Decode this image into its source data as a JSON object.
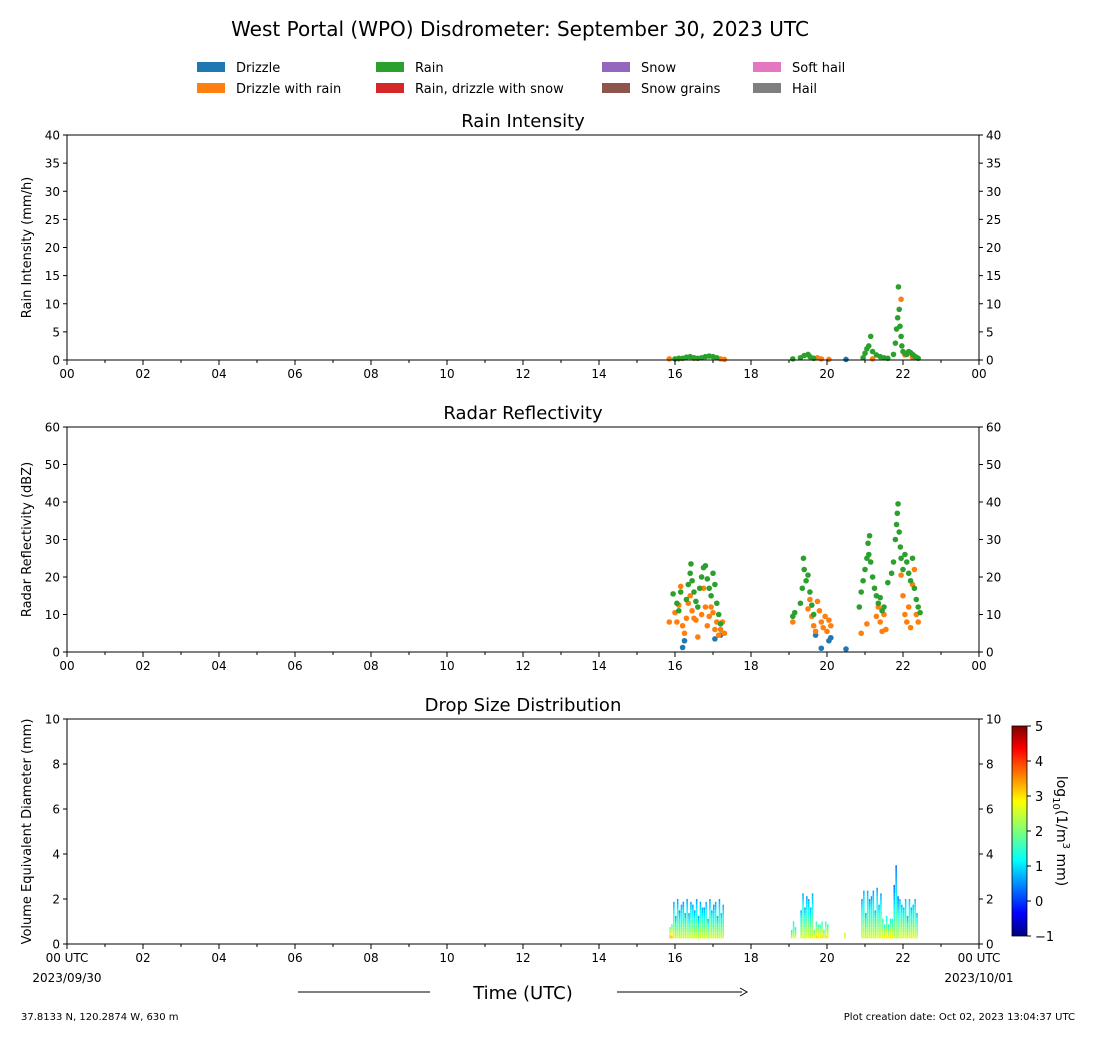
{
  "figure": {
    "title": "West Portal (WPO) Disdrometer: September 30, 2023 UTC",
    "footer_left": "37.8133 N, 120.2874 W, 630 m",
    "footer_right": "Plot creation date: Oct 02, 2023 13:04:37 UTC",
    "time_label": "Time (UTC)"
  },
  "legend": {
    "entries": [
      {
        "label": "Drizzle",
        "color": "#1f77b4"
      },
      {
        "label": "Drizzle with rain",
        "color": "#ff7f0e"
      },
      {
        "label": "Rain",
        "color": "#2ca02c"
      },
      {
        "label": "Rain, drizzle with snow",
        "color": "#d62728"
      },
      {
        "label": "Snow",
        "color": "#9467bd"
      },
      {
        "label": "Snow grains",
        "color": "#8c564b"
      },
      {
        "label": "Soft hail",
        "color": "#e377c2"
      },
      {
        "label": "Hail",
        "color": "#7f7f7f"
      }
    ]
  },
  "colorbar": {
    "label_prefix": "log",
    "label_sub": "10",
    "label_mid": "(1/m",
    "label_sup": "3",
    "label_suffix": " mm)",
    "range": [
      -1,
      5
    ],
    "ticks": [
      "−1",
      "0",
      "1",
      "2",
      "3",
      "4",
      "5"
    ]
  },
  "chart_data": [
    {
      "type": "scatter",
      "title": "Rain Intensity",
      "ylabel": "Rain Intensity (mm/h)",
      "xlim": [
        0,
        24
      ],
      "ylim": [
        0,
        40
      ],
      "yticks": [
        0,
        5,
        10,
        15,
        20,
        25,
        30,
        35,
        40
      ],
      "xticks": [
        "00",
        "02",
        "04",
        "06",
        "08",
        "10",
        "12",
        "14",
        "16",
        "18",
        "20",
        "22",
        "00"
      ],
      "series": [
        {
          "name": "Drizzle",
          "color": "#1f77b4",
          "points": [
            [
              20.5,
              0.1
            ]
          ]
        },
        {
          "name": "Drizzle with rain",
          "color": "#ff7f0e",
          "points": [
            [
              15.85,
              0.2
            ],
            [
              16.1,
              0.2
            ],
            [
              16.5,
              0.3
            ],
            [
              17.2,
              0.2
            ],
            [
              17.3,
              0.1
            ],
            [
              19.75,
              0.4
            ],
            [
              19.85,
              0.2
            ],
            [
              20.05,
              0.1
            ],
            [
              21.2,
              0.2
            ],
            [
              21.95,
              10.8
            ],
            [
              22.05,
              0.9
            ],
            [
              22.25,
              0.5
            ]
          ]
        },
        {
          "name": "Rain",
          "color": "#2ca02c",
          "points": [
            [
              16.0,
              0.2
            ],
            [
              16.1,
              0.3
            ],
            [
              16.2,
              0.3
            ],
            [
              16.3,
              0.5
            ],
            [
              16.4,
              0.6
            ],
            [
              16.5,
              0.4
            ],
            [
              16.6,
              0.3
            ],
            [
              16.7,
              0.4
            ],
            [
              16.8,
              0.6
            ],
            [
              16.9,
              0.7
            ],
            [
              17.0,
              0.6
            ],
            [
              17.1,
              0.4
            ],
            [
              19.1,
              0.2
            ],
            [
              19.3,
              0.4
            ],
            [
              19.4,
              0.8
            ],
            [
              19.5,
              1.0
            ],
            [
              19.55,
              0.6
            ],
            [
              19.65,
              0.3
            ],
            [
              20.95,
              0.4
            ],
            [
              21.0,
              1.2
            ],
            [
              21.05,
              2.0
            ],
            [
              21.1,
              2.5
            ],
            [
              21.15,
              4.2
            ],
            [
              21.2,
              1.5
            ],
            [
              21.3,
              0.9
            ],
            [
              21.4,
              0.6
            ],
            [
              21.5,
              0.4
            ],
            [
              21.6,
              0.3
            ],
            [
              21.75,
              1.0
            ],
            [
              21.8,
              3.0
            ],
            [
              21.83,
              5.5
            ],
            [
              21.86,
              7.5
            ],
            [
              21.88,
              13.0
            ],
            [
              21.9,
              9.0
            ],
            [
              21.92,
              6.0
            ],
            [
              21.95,
              4.2
            ],
            [
              21.97,
              2.5
            ],
            [
              22.0,
              1.5
            ],
            [
              22.05,
              1.2
            ],
            [
              22.1,
              1.0
            ],
            [
              22.15,
              1.5
            ],
            [
              22.2,
              1.3
            ],
            [
              22.25,
              1.0
            ],
            [
              22.3,
              0.7
            ],
            [
              22.35,
              0.5
            ],
            [
              22.4,
              0.3
            ]
          ]
        }
      ]
    },
    {
      "type": "scatter",
      "title": "Radar Reflectivity",
      "ylabel": "Radar Reflectivity (dBZ)",
      "xlim": [
        0,
        24
      ],
      "ylim": [
        0,
        60
      ],
      "yticks": [
        0,
        10,
        20,
        30,
        40,
        50,
        60
      ],
      "xticks": [
        "00",
        "02",
        "04",
        "06",
        "08",
        "10",
        "12",
        "14",
        "16",
        "18",
        "20",
        "22",
        "00"
      ],
      "series": [
        {
          "name": "Drizzle",
          "color": "#1f77b4",
          "points": [
            [
              16.2,
              1.2
            ],
            [
              16.25,
              3.0
            ],
            [
              17.05,
              3.5
            ],
            [
              17.2,
              4.5
            ],
            [
              19.7,
              4.5
            ],
            [
              19.85,
              1.0
            ],
            [
              20.05,
              3.0
            ],
            [
              20.1,
              3.8
            ],
            [
              20.5,
              0.8
            ]
          ]
        },
        {
          "name": "Drizzle with rain",
          "color": "#ff7f0e",
          "points": [
            [
              15.85,
              8.0
            ],
            [
              16.0,
              10.5
            ],
            [
              16.05,
              8.0
            ],
            [
              16.1,
              12.5
            ],
            [
              16.15,
              17.5
            ],
            [
              16.2,
              7.0
            ],
            [
              16.25,
              5.0
            ],
            [
              16.3,
              9.0
            ],
            [
              16.35,
              13.0
            ],
            [
              16.4,
              15.0
            ],
            [
              16.45,
              11.0
            ],
            [
              16.5,
              9.0
            ],
            [
              16.55,
              8.5
            ],
            [
              16.6,
              4.0
            ],
            [
              16.7,
              10.0
            ],
            [
              16.75,
              17.0
            ],
            [
              16.8,
              12.0
            ],
            [
              16.85,
              7.0
            ],
            [
              16.9,
              9.5
            ],
            [
              16.95,
              12.0
            ],
            [
              17.0,
              10.5
            ],
            [
              17.05,
              6.0
            ],
            [
              17.1,
              8.0
            ],
            [
              17.15,
              4.5
            ],
            [
              17.2,
              6.0
            ],
            [
              17.25,
              8.0
            ],
            [
              17.3,
              5.0
            ],
            [
              19.1,
              8.0
            ],
            [
              19.5,
              11.5
            ],
            [
              19.55,
              14.0
            ],
            [
              19.6,
              9.5
            ],
            [
              19.65,
              7.0
            ],
            [
              19.7,
              5.5
            ],
            [
              19.75,
              13.5
            ],
            [
              19.8,
              11.0
            ],
            [
              19.85,
              8.0
            ],
            [
              19.9,
              6.5
            ],
            [
              19.95,
              9.5
            ],
            [
              20.0,
              5.5
            ],
            [
              20.05,
              8.5
            ],
            [
              20.1,
              7.0
            ],
            [
              20.9,
              5.0
            ],
            [
              21.05,
              7.5
            ],
            [
              21.3,
              9.5
            ],
            [
              21.35,
              12.0
            ],
            [
              21.4,
              8.0
            ],
            [
              21.45,
              5.5
            ],
            [
              21.5,
              10.0
            ],
            [
              21.55,
              6.0
            ],
            [
              21.95,
              20.5
            ],
            [
              22.0,
              15.0
            ],
            [
              22.05,
              10.0
            ],
            [
              22.1,
              8.0
            ],
            [
              22.15,
              12.0
            ],
            [
              22.2,
              6.5
            ],
            [
              22.25,
              18.0
            ],
            [
              22.3,
              22.0
            ],
            [
              22.35,
              10.0
            ],
            [
              22.4,
              8.0
            ]
          ]
        },
        {
          "name": "Rain",
          "color": "#2ca02c",
          "points": [
            [
              15.95,
              15.5
            ],
            [
              16.05,
              13.0
            ],
            [
              16.1,
              11.0
            ],
            [
              16.15,
              16.0
            ],
            [
              16.3,
              14.0
            ],
            [
              16.35,
              18.0
            ],
            [
              16.4,
              21.0
            ],
            [
              16.42,
              23.5
            ],
            [
              16.45,
              19.0
            ],
            [
              16.5,
              16.0
            ],
            [
              16.55,
              13.5
            ],
            [
              16.6,
              12.0
            ],
            [
              16.65,
              17.0
            ],
            [
              16.7,
              20.0
            ],
            [
              16.75,
              22.5
            ],
            [
              16.8,
              23.0
            ],
            [
              16.85,
              19.5
            ],
            [
              16.9,
              17.0
            ],
            [
              16.95,
              15.0
            ],
            [
              17.0,
              21.0
            ],
            [
              17.05,
              18.0
            ],
            [
              17.1,
              13.0
            ],
            [
              17.15,
              10.0
            ],
            [
              17.2,
              7.5
            ],
            [
              19.1,
              9.5
            ],
            [
              19.15,
              10.5
            ],
            [
              19.3,
              13.0
            ],
            [
              19.35,
              17.0
            ],
            [
              19.38,
              25.0
            ],
            [
              19.4,
              22.0
            ],
            [
              19.45,
              19.0
            ],
            [
              19.5,
              20.5
            ],
            [
              19.55,
              16.0
            ],
            [
              19.6,
              12.5
            ],
            [
              19.65,
              10.0
            ],
            [
              20.85,
              12.0
            ],
            [
              20.9,
              16.0
            ],
            [
              20.95,
              19.0
            ],
            [
              21.0,
              22.0
            ],
            [
              21.05,
              25.0
            ],
            [
              21.08,
              29.0
            ],
            [
              21.1,
              26.0
            ],
            [
              21.12,
              31.0
            ],
            [
              21.15,
              24.0
            ],
            [
              21.2,
              20.0
            ],
            [
              21.25,
              17.0
            ],
            [
              21.3,
              15.0
            ],
            [
              21.35,
              13.0
            ],
            [
              21.4,
              14.5
            ],
            [
              21.45,
              11.0
            ],
            [
              21.5,
              12.0
            ],
            [
              21.6,
              18.5
            ],
            [
              21.7,
              21.0
            ],
            [
              21.75,
              24.0
            ],
            [
              21.8,
              30.0
            ],
            [
              21.83,
              34.0
            ],
            [
              21.85,
              37.0
            ],
            [
              21.87,
              39.5
            ],
            [
              21.9,
              32.0
            ],
            [
              21.93,
              28.0
            ],
            [
              21.95,
              25.0
            ],
            [
              22.0,
              22.0
            ],
            [
              22.05,
              26.0
            ],
            [
              22.1,
              24.0
            ],
            [
              22.15,
              21.0
            ],
            [
              22.2,
              19.0
            ],
            [
              22.25,
              25.0
            ],
            [
              22.3,
              17.0
            ],
            [
              22.35,
              14.0
            ],
            [
              22.4,
              12.0
            ],
            [
              22.45,
              10.5
            ]
          ]
        }
      ]
    },
    {
      "type": "heatmap",
      "title": "Drop Size Distribution",
      "ylabel": "Volume Equivalent Diameter (mm)",
      "xlim": [
        0,
        24
      ],
      "ylim": [
        0,
        10
      ],
      "yticks": [
        0,
        2,
        4,
        6,
        8,
        10
      ],
      "xticks": [
        "00 UTC",
        "02",
        "04",
        "06",
        "08",
        "10",
        "12",
        "14",
        "16",
        "18",
        "20",
        "22",
        "00 UTC"
      ],
      "xtick_first_date": "2023/09/30",
      "xtick_last_date": "2023/10/01",
      "columns": [
        {
          "t0": 15.85,
          "t1": 15.95,
          "dmax": 0.9,
          "log": 2.5
        },
        {
          "t0": 15.95,
          "t1": 17.3,
          "dmax": 1.9,
          "log": 1.5
        },
        {
          "t0": 19.05,
          "t1": 19.2,
          "dmax": 0.9,
          "log": 2.0
        },
        {
          "t0": 19.3,
          "t1": 19.65,
          "dmax": 2.2,
          "log": 1.5
        },
        {
          "t0": 19.65,
          "t1": 20.05,
          "dmax": 1.0,
          "log": 2.2
        },
        {
          "t0": 20.45,
          "t1": 20.5,
          "dmax": 0.5,
          "log": 2.6
        },
        {
          "t0": 20.9,
          "t1": 21.45,
          "dmax": 2.4,
          "log": 1.5
        },
        {
          "t0": 21.45,
          "t1": 21.75,
          "dmax": 1.2,
          "log": 2.0
        },
        {
          "t0": 21.75,
          "t1": 21.9,
          "dmax": 3.4,
          "log": 1.2
        },
        {
          "t0": 21.9,
          "t1": 22.4,
          "dmax": 2.0,
          "log": 1.6
        }
      ]
    }
  ]
}
